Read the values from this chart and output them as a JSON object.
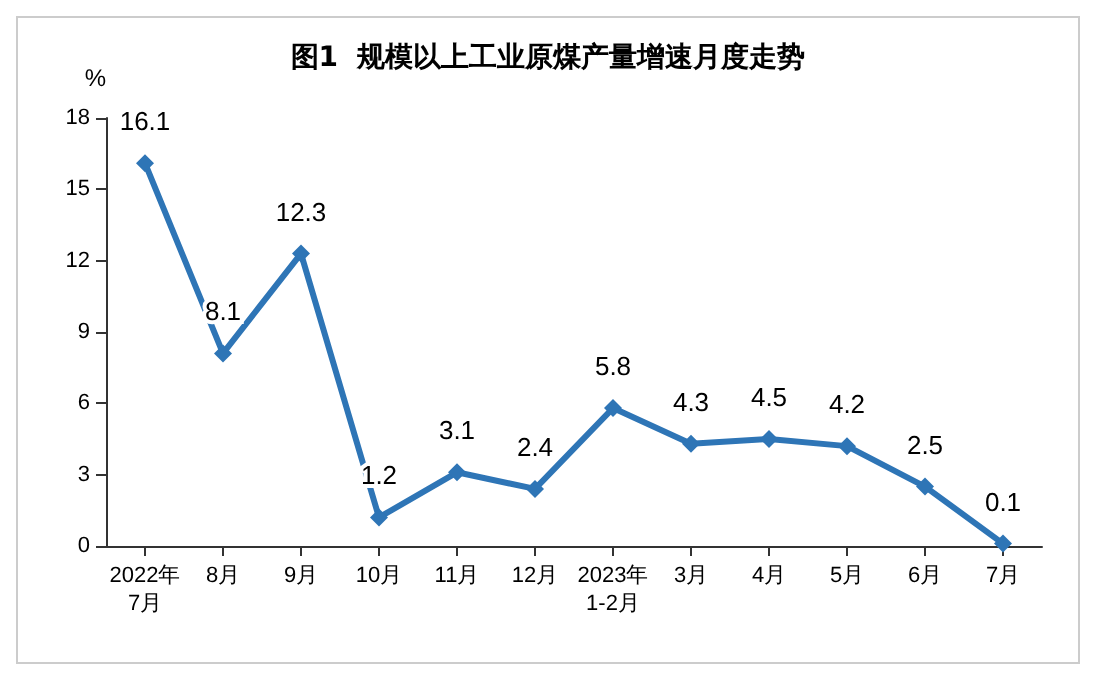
{
  "chart_data": {
    "type": "line",
    "title": "图1  规模以上工业原煤产量增速月度走势",
    "ylabel": "%",
    "categories": [
      "2022年\n7月",
      "8月",
      "9月",
      "10月",
      "11月",
      "12月",
      "2023年\n1-2月",
      "3月",
      "4月",
      "5月",
      "6月",
      "7月"
    ],
    "series": [
      {
        "color": "#2e75b6",
        "values": [
          16.1,
          8.1,
          12.3,
          1.2,
          3.1,
          2.4,
          5.8,
          4.3,
          4.5,
          4.2,
          2.5,
          0.1
        ]
      }
    ],
    "ylim": [
      0,
      18
    ],
    "yticks": [
      0,
      3,
      6,
      9,
      12,
      15,
      18
    ],
    "grid": false,
    "marker": "diamond",
    "line_style": "solid",
    "data_labels": true
  }
}
